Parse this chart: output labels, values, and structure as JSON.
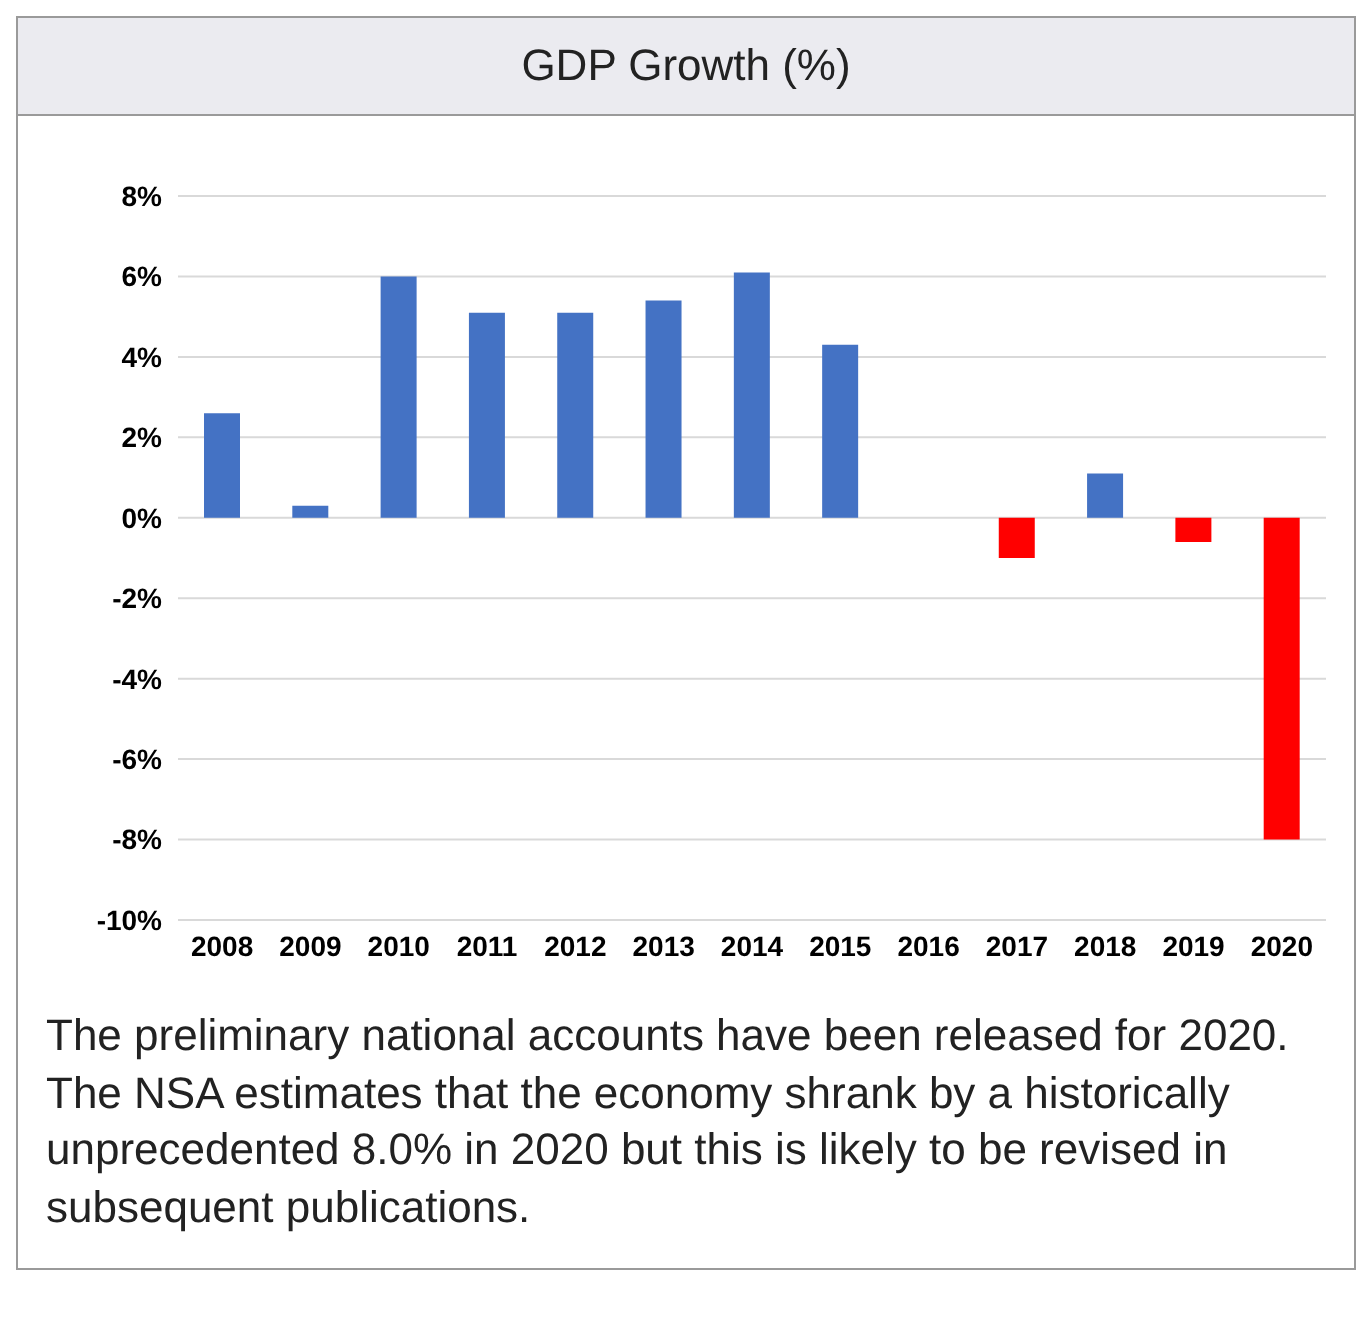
{
  "chart_data": {
    "type": "bar",
    "title": "GDP Growth (%)",
    "categories": [
      "2008",
      "2009",
      "2010",
      "2011",
      "2012",
      "2013",
      "2014",
      "2015",
      "2016",
      "2017",
      "2018",
      "2019",
      "2020"
    ],
    "values": [
      2.6,
      0.3,
      6.0,
      5.1,
      5.1,
      5.4,
      6.1,
      4.3,
      0,
      -1.0,
      1.1,
      -0.6,
      -8.0
    ],
    "colors": [
      "#4472c4",
      "#4472c4",
      "#4472c4",
      "#4472c4",
      "#4472c4",
      "#4472c4",
      "#4472c4",
      "#4472c4",
      "#4472c4",
      "#ff0000",
      "#4472c4",
      "#ff0000",
      "#ff0000"
    ],
    "ylim": [
      -10,
      8
    ],
    "yticks": [
      {
        "value": -10,
        "label": "-10%"
      },
      {
        "value": -8,
        "label": "-8%"
      },
      {
        "value": -6,
        "label": "-6%"
      },
      {
        "value": -4,
        "label": "-4%"
      },
      {
        "value": -2,
        "label": "-2%"
      },
      {
        "value": 0,
        "label": "0%"
      },
      {
        "value": 2,
        "label": "2%"
      },
      {
        "value": 4,
        "label": "4%"
      },
      {
        "value": 6,
        "label": "6%"
      },
      {
        "value": 8,
        "label": "8%"
      }
    ],
    "grid": "y",
    "legend": false,
    "annotations": [
      "The preliminary national accounts have been released for 2020. The NSA estimates that the economy shrank by a historically unprecedented 8.0% in 2020 but this is likely to be revised in subsequent publications."
    ]
  }
}
